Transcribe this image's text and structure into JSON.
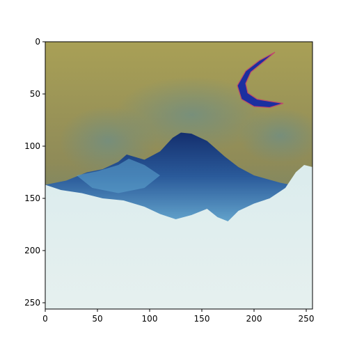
{
  "chart_data": {
    "type": "image",
    "title": "",
    "xlabel": "",
    "ylabel": "",
    "xlim": [
      0,
      256
    ],
    "ylim": [
      256,
      0
    ],
    "x_ticks": [
      0,
      50,
      100,
      150,
      200,
      250
    ],
    "y_ticks": [
      0,
      50,
      100,
      150,
      200,
      250
    ],
    "image_description_hidden": true,
    "features": {
      "sky_top_color": "#9a9350",
      "sky_mid_color": "#7f8b6f",
      "mountain_color": "#1f4b8c",
      "mountain_highlight_color": "#6fb1d6",
      "snow_color": "#e3efef",
      "moon_color": "#1b2fa0",
      "moon_edge_color": "#c04a6a",
      "grid": false
    }
  }
}
